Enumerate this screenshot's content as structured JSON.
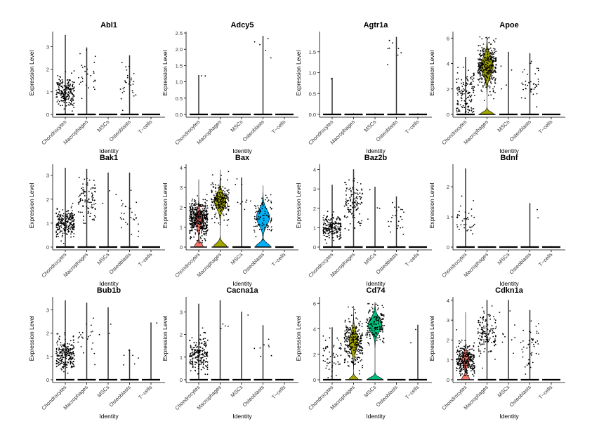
{
  "figure": {
    "xlabel": "Identity",
    "ylabel": "Expression Level",
    "categories": [
      "Chondrocytes",
      "Macrophages",
      "MSCs",
      "Osteoblasts",
      "T−cells"
    ],
    "colors": {
      "Chondrocytes": "#F8766D",
      "Macrophages": "#A3A500",
      "MSCs": "#00BF7D",
      "Osteoblasts": "#00B0F6",
      "T−cells": "#E76BF3"
    }
  },
  "chart_data": [
    {
      "type": "violin",
      "title": "Abl1",
      "ylim": [
        0,
        3.6
      ],
      "yticks": [
        0,
        1,
        2,
        3
      ],
      "series": [
        {
          "name": "Chondrocytes",
          "max": 3.5,
          "center": 1.0,
          "spread": 0.35,
          "n": 220,
          "violin_width": 0.02,
          "zero_points": true
        },
        {
          "name": "Macrophages",
          "max": 2.95,
          "center": 1.8,
          "spread": 0.45,
          "n": 28,
          "violin_width": 0.02,
          "zero_points": true
        },
        {
          "name": "MSCs",
          "max": 0.02,
          "center": 0,
          "spread": 0,
          "n": 0,
          "violin_width": 0.02,
          "zero_points": true
        },
        {
          "name": "Osteoblasts",
          "max": 2.6,
          "center": 1.2,
          "spread": 0.4,
          "n": 28,
          "violin_width": 0.02,
          "zero_points": true
        },
        {
          "name": "T−cells",
          "max": 0.02,
          "center": 0,
          "spread": 0,
          "n": 0,
          "violin_width": 0.02,
          "zero_points": true
        }
      ]
    },
    {
      "type": "violin",
      "title": "Adcy5",
      "ylim": [
        0,
        2.5
      ],
      "yticks": [
        0.0,
        0.5,
        1.0,
        1.5,
        2.0,
        2.5
      ],
      "series": [
        {
          "name": "Chondrocytes",
          "max": 1.2,
          "center": 1.2,
          "spread": 0.02,
          "n": 2,
          "violin_width": 0.02,
          "zero_points": true
        },
        {
          "name": "Macrophages",
          "max": 0.02,
          "center": 0,
          "spread": 0,
          "n": 0,
          "violin_width": 0.02,
          "zero_points": true
        },
        {
          "name": "MSCs",
          "max": 0.02,
          "center": 0,
          "spread": 0,
          "n": 0,
          "violin_width": 0.02,
          "zero_points": true
        },
        {
          "name": "Osteoblasts",
          "max": 2.4,
          "center": 1.9,
          "spread": 0.4,
          "n": 5,
          "violin_width": 0.02,
          "zero_points": true
        },
        {
          "name": "T−cells",
          "max": 0.02,
          "center": 0,
          "spread": 0,
          "n": 0,
          "violin_width": 0.02,
          "zero_points": true
        }
      ]
    },
    {
      "type": "violin",
      "title": "Agtr1a",
      "ylim": [
        0,
        1.95
      ],
      "yticks": [
        0.0,
        0.5,
        1.0,
        1.5
      ],
      "series": [
        {
          "name": "Chondrocytes",
          "max": 0.87,
          "center": 0.87,
          "spread": 0.02,
          "n": 1,
          "violin_width": 0.02,
          "zero_points": true
        },
        {
          "name": "Macrophages",
          "max": 0.02,
          "center": 0,
          "spread": 0,
          "n": 0,
          "violin_width": 0.02,
          "zero_points": true
        },
        {
          "name": "MSCs",
          "max": 0.02,
          "center": 0,
          "spread": 0,
          "n": 0,
          "violin_width": 0.02,
          "zero_points": true
        },
        {
          "name": "Osteoblasts",
          "max": 1.85,
          "center": 1.3,
          "spread": 0.35,
          "n": 8,
          "violin_width": 0.02,
          "zero_points": true
        },
        {
          "name": "T−cells",
          "max": 0.02,
          "center": 0,
          "spread": 0,
          "n": 0,
          "violin_width": 0.02,
          "zero_points": true
        }
      ]
    },
    {
      "type": "violin",
      "title": "Apoe",
      "ylim": [
        0,
        6.4
      ],
      "yticks": [
        0,
        2,
        4,
        6
      ],
      "series": [
        {
          "name": "Chondrocytes",
          "max": 4.5,
          "center": 1.5,
          "spread": 1.0,
          "n": 140,
          "violin_width": 0.05,
          "zero_points": true
        },
        {
          "name": "Macrophages",
          "max": 6.1,
          "center": 3.8,
          "spread": 0.9,
          "n": 320,
          "violin_width": 0.8,
          "zero_points": false
        },
        {
          "name": "MSCs",
          "max": 4.9,
          "center": 3.2,
          "spread": 1.0,
          "n": 4,
          "violin_width": 0.02,
          "zero_points": true
        },
        {
          "name": "Osteoblasts",
          "max": 4.8,
          "center": 2.3,
          "spread": 0.9,
          "n": 40,
          "violin_width": 0.02,
          "zero_points": true
        },
        {
          "name": "T−cells",
          "max": 0.02,
          "center": 0,
          "spread": 0,
          "n": 0,
          "violin_width": 0.02,
          "zero_points": true
        }
      ]
    },
    {
      "type": "violin",
      "title": "Bak1",
      "ylim": [
        0,
        3.4
      ],
      "yticks": [
        0,
        1,
        2,
        3
      ],
      "series": [
        {
          "name": "Chondrocytes",
          "max": 3.3,
          "center": 1.0,
          "spread": 0.3,
          "n": 240,
          "violin_width": 0.02,
          "zero_points": true
        },
        {
          "name": "Macrophages",
          "max": 3.25,
          "center": 2.0,
          "spread": 0.45,
          "n": 90,
          "violin_width": 0.02,
          "zero_points": true
        },
        {
          "name": "MSCs",
          "max": 3.1,
          "center": 2.4,
          "spread": 0.3,
          "n": 3,
          "violin_width": 0.02,
          "zero_points": true
        },
        {
          "name": "Osteoblasts",
          "max": 3.1,
          "center": 1.3,
          "spread": 0.5,
          "n": 28,
          "violin_width": 0.02,
          "zero_points": true
        },
        {
          "name": "T−cells",
          "max": 0.02,
          "center": 0,
          "spread": 0,
          "n": 0,
          "violin_width": 0.02,
          "zero_points": true
        }
      ]
    },
    {
      "type": "violin",
      "title": "Bax",
      "ylim": [
        0,
        4.1
      ],
      "yticks": [
        0,
        1,
        2,
        3,
        4
      ],
      "series": [
        {
          "name": "Chondrocytes",
          "max": 3.4,
          "center": 1.4,
          "spread": 0.45,
          "n": 420,
          "violin_width": 0.5,
          "zero_points": false
        },
        {
          "name": "Macrophages",
          "max": 3.9,
          "center": 2.3,
          "spread": 0.45,
          "n": 200,
          "violin_width": 0.75,
          "zero_points": false
        },
        {
          "name": "MSCs",
          "max": 3.5,
          "center": 2.5,
          "spread": 0.5,
          "n": 10,
          "violin_width": 0.02,
          "zero_points": true
        },
        {
          "name": "Osteoblasts",
          "max": 3.1,
          "center": 1.5,
          "spread": 0.5,
          "n": 90,
          "violin_width": 0.85,
          "zero_points": false
        },
        {
          "name": "T−cells",
          "max": 0.02,
          "center": 0,
          "spread": 0,
          "n": 0,
          "violin_width": 0.02,
          "zero_points": true
        }
      ]
    },
    {
      "type": "violin",
      "title": "Baz2b",
      "ylim": [
        0,
        4.2
      ],
      "yticks": [
        0,
        1,
        2,
        3,
        4
      ],
      "series": [
        {
          "name": "Chondrocytes",
          "max": 3.2,
          "center": 1.0,
          "spread": 0.3,
          "n": 190,
          "violin_width": 0.02,
          "zero_points": true
        },
        {
          "name": "Macrophages",
          "max": 4.0,
          "center": 2.3,
          "spread": 0.55,
          "n": 120,
          "violin_width": 0.02,
          "zero_points": true
        },
        {
          "name": "MSCs",
          "max": 3.1,
          "center": 2.0,
          "spread": 0.6,
          "n": 4,
          "violin_width": 0.02,
          "zero_points": true
        },
        {
          "name": "Osteoblasts",
          "max": 2.6,
          "center": 1.5,
          "spread": 0.5,
          "n": 22,
          "violin_width": 0.02,
          "zero_points": true
        },
        {
          "name": "T−cells",
          "max": 0.02,
          "center": 0,
          "spread": 0,
          "n": 0,
          "violin_width": 0.02,
          "zero_points": true
        }
      ]
    },
    {
      "type": "violin",
      "title": "Bdnf",
      "ylim": [
        0,
        2.7
      ],
      "yticks": [
        0,
        1,
        2
      ],
      "series": [
        {
          "name": "Chondrocytes",
          "max": 2.6,
          "center": 0.85,
          "spread": 0.35,
          "n": 38,
          "violin_width": 0.02,
          "zero_points": true
        },
        {
          "name": "Macrophages",
          "max": 0.02,
          "center": 0,
          "spread": 0,
          "n": 0,
          "violin_width": 0.02,
          "zero_points": true
        },
        {
          "name": "MSCs",
          "max": 0.02,
          "center": 0,
          "spread": 0,
          "n": 0,
          "violin_width": 0.02,
          "zero_points": true
        },
        {
          "name": "Osteoblasts",
          "max": 1.45,
          "center": 1.2,
          "spread": 0.2,
          "n": 2,
          "violin_width": 0.02,
          "zero_points": true
        },
        {
          "name": "T−cells",
          "max": 0.02,
          "center": 0,
          "spread": 0,
          "n": 0,
          "violin_width": 0.02,
          "zero_points": true
        }
      ]
    },
    {
      "type": "violin",
      "title": "Bub1b",
      "ylim": [
        0,
        3.5
      ],
      "yticks": [
        0,
        1,
        2,
        3
      ],
      "series": [
        {
          "name": "Chondrocytes",
          "max": 3.4,
          "center": 1.1,
          "spread": 0.35,
          "n": 240,
          "violin_width": 0.02,
          "zero_points": true
        },
        {
          "name": "Macrophages",
          "max": 3.3,
          "center": 2.0,
          "spread": 0.5,
          "n": 22,
          "violin_width": 0.02,
          "zero_points": true
        },
        {
          "name": "MSCs",
          "max": 3.1,
          "center": 2.3,
          "spread": 0.5,
          "n": 3,
          "violin_width": 0.02,
          "zero_points": true
        },
        {
          "name": "Osteoblasts",
          "max": 1.3,
          "center": 0.9,
          "spread": 0.25,
          "n": 6,
          "violin_width": 0.02,
          "zero_points": true
        },
        {
          "name": "T−cells",
          "max": 2.45,
          "center": 2.45,
          "spread": 0.02,
          "n": 1,
          "violin_width": 0.02,
          "zero_points": true
        }
      ]
    },
    {
      "type": "violin",
      "title": "Cacna1a",
      "ylim": [
        0,
        3.6
      ],
      "yticks": [
        0,
        1,
        2,
        3
      ],
      "series": [
        {
          "name": "Chondrocytes",
          "max": 3.35,
          "center": 1.1,
          "spread": 0.4,
          "n": 200,
          "violin_width": 0.02,
          "zero_points": true
        },
        {
          "name": "Macrophages",
          "max": 3.5,
          "center": 2.3,
          "spread": 0.6,
          "n": 4,
          "violin_width": 0.02,
          "zero_points": true
        },
        {
          "name": "MSCs",
          "max": 3.0,
          "center": 3.0,
          "spread": 0.02,
          "n": 1,
          "violin_width": 0.02,
          "zero_points": true
        },
        {
          "name": "Osteoblasts",
          "max": 2.4,
          "center": 1.3,
          "spread": 0.3,
          "n": 8,
          "violin_width": 0.02,
          "zero_points": true
        },
        {
          "name": "T−cells",
          "max": 0.02,
          "center": 0,
          "spread": 0,
          "n": 0,
          "violin_width": 0.02,
          "zero_points": true
        }
      ]
    },
    {
      "type": "violin",
      "title": "Cd74",
      "ylim": [
        0,
        6.4
      ],
      "yticks": [
        0,
        2,
        4,
        6
      ],
      "series": [
        {
          "name": "Chondrocytes",
          "max": 4.1,
          "center": 1.8,
          "spread": 0.8,
          "n": 55,
          "violin_width": 0.02,
          "zero_points": true
        },
        {
          "name": "Macrophages",
          "max": 5.8,
          "center": 3.0,
          "spread": 0.9,
          "n": 260,
          "violin_width": 0.55,
          "zero_points": false
        },
        {
          "name": "MSCs",
          "max": 6.1,
          "center": 4.3,
          "spread": 0.7,
          "n": 150,
          "violin_width": 0.9,
          "zero_points": false
        },
        {
          "name": "Osteoblasts",
          "max": 0.02,
          "center": 0,
          "spread": 0,
          "n": 0,
          "violin_width": 0.02,
          "zero_points": true
        },
        {
          "name": "T−cells",
          "max": 4.3,
          "center": 3.2,
          "spread": 0.4,
          "n": 2,
          "violin_width": 0.02,
          "zero_points": true
        }
      ]
    },
    {
      "type": "violin",
      "title": "Cdkn1a",
      "ylim": [
        0,
        4.1
      ],
      "yticks": [
        0,
        1,
        2,
        3,
        4
      ],
      "series": [
        {
          "name": "Chondrocytes",
          "max": 3.4,
          "center": 1.0,
          "spread": 0.4,
          "n": 300,
          "violin_width": 0.45,
          "zero_points": false
        },
        {
          "name": "Macrophages",
          "max": 4.0,
          "center": 2.3,
          "spread": 0.55,
          "n": 140,
          "violin_width": 0.02,
          "zero_points": true
        },
        {
          "name": "MSCs",
          "max": 4.0,
          "center": 2.6,
          "spread": 0.7,
          "n": 10,
          "violin_width": 0.02,
          "zero_points": true
        },
        {
          "name": "Osteoblasts",
          "max": 3.5,
          "center": 1.7,
          "spread": 0.6,
          "n": 45,
          "violin_width": 0.02,
          "zero_points": true
        },
        {
          "name": "T−cells",
          "max": 0.02,
          "center": 0,
          "spread": 0,
          "n": 0,
          "violin_width": 0.02,
          "zero_points": true
        }
      ]
    }
  ]
}
